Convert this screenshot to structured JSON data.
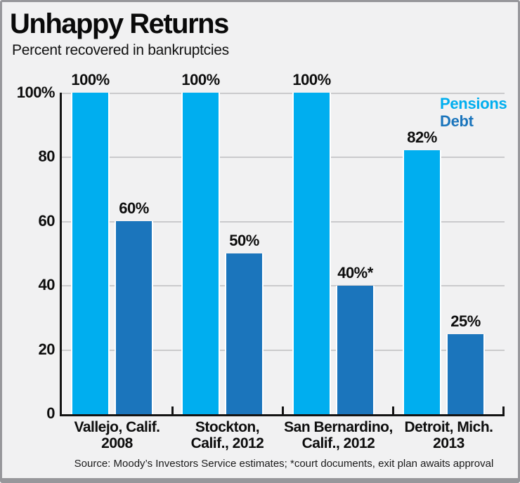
{
  "frame": {
    "background": "#f1f1f2",
    "border_color": "#97979b"
  },
  "header": {
    "title": "Unhappy Returns",
    "subtitle": "Percent recovered in bankruptcies"
  },
  "chart_data": {
    "type": "bar",
    "title": "Unhappy Returns",
    "subtitle": "Percent recovered in bankruptcies",
    "categories": [
      [
        "Vallejo, Calif.",
        "2008"
      ],
      [
        "Stockton,",
        "Calif., 2012"
      ],
      [
        "San Bernardino,",
        "Calif., 2012"
      ],
      [
        "Detroit, Mich.",
        "2013"
      ]
    ],
    "series": [
      {
        "name": "Pensions",
        "color": "#00aeef",
        "values": [
          100,
          100,
          100,
          82
        ],
        "labels": [
          "100%",
          "100%",
          "100%",
          "82%"
        ]
      },
      {
        "name": "Debt",
        "color": "#1b75bc",
        "values": [
          60,
          50,
          40,
          25
        ],
        "labels": [
          "60%",
          "50%",
          "40%*",
          "25%"
        ]
      }
    ],
    "y_axis": {
      "min": 0,
      "max": 100,
      "tick_labels": [
        "100%",
        "80",
        "60",
        "40",
        "20",
        "0"
      ],
      "grid": true
    },
    "legend": {
      "position": "top-right",
      "entries": [
        "Pensions",
        "Debt"
      ]
    },
    "footnote_marker": "*",
    "source": "Source: Moody’s Investors Service estimates; *court documents, exit plan awaits approval"
  }
}
